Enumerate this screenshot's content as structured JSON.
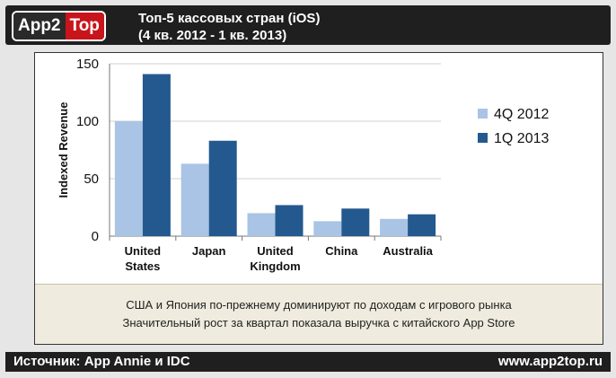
{
  "header": {
    "logo_left": "App2",
    "logo_right": "Top",
    "title_line1": "Топ-5 кассовых стран (iOS)",
    "title_line2": "(4 кв. 2012 - 1 кв. 2013)"
  },
  "chart_data": {
    "type": "bar",
    "categories": [
      [
        "United",
        "States"
      ],
      [
        "Japan"
      ],
      [
        "United",
        "Kingdom"
      ],
      [
        "China"
      ],
      [
        "Australia"
      ]
    ],
    "series": [
      {
        "name": "4Q 2012",
        "color": "#a9c4e4",
        "values": [
          100,
          63,
          20,
          13,
          15
        ]
      },
      {
        "name": "1Q 2013",
        "color": "#23598f",
        "values": [
          141,
          83,
          27,
          24,
          19
        ]
      }
    ],
    "ylabel": "Indexed Revenue",
    "ylim": [
      0,
      150
    ],
    "yticks": [
      0,
      50,
      100,
      150
    ],
    "grid": true,
    "legend": "right"
  },
  "caption": {
    "line1": "США и Япония по-прежнему доминируют по доходам с игрового рынка",
    "line2": "Значительный рост за квартал показала выручка с китайского App Store"
  },
  "footer": {
    "source": "Источник: App Annie и IDC",
    "site": "www.app2top.ru"
  }
}
